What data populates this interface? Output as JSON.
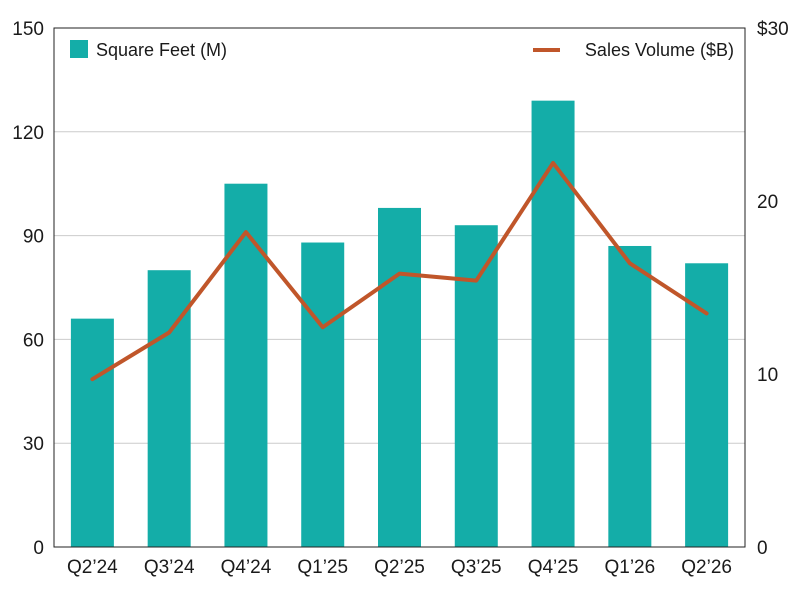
{
  "chart_data": {
    "type": "bar",
    "categories": [
      "Q2’24",
      "Q3’24",
      "Q4’24",
      "Q1’25",
      "Q2’25",
      "Q3’25",
      "Q4’25",
      "Q1’26",
      "Q2’26"
    ],
    "series": [
      {
        "name": "Square Feet (M)",
        "type": "bar",
        "axis": "left",
        "color": "#14ADA8",
        "values": [
          66,
          80,
          105,
          88,
          98,
          93,
          129,
          87,
          82
        ]
      },
      {
        "name": "Sales Volume ($B)",
        "type": "line",
        "axis": "right",
        "color": "#C0562A",
        "values": [
          9.7,
          12.4,
          18.2,
          12.7,
          15.8,
          15.4,
          22.2,
          16.4,
          13.5
        ]
      }
    ],
    "left_axis": {
      "ylim": [
        0,
        150
      ],
      "ticks": [
        0,
        30,
        60,
        90,
        120,
        150
      ],
      "tick_labels": [
        "0",
        "30",
        "60",
        "90",
        "120",
        "150"
      ]
    },
    "right_axis": {
      "ylim": [
        0,
        30
      ],
      "ticks": [
        0,
        10,
        20,
        30
      ],
      "tick_labels": [
        "0",
        "10",
        "20",
        "$30"
      ]
    },
    "legend": {
      "bar_label": "Square Feet (M)",
      "line_label": "Sales Volume ($B)",
      "placement": "top"
    },
    "grid": true,
    "title": "",
    "xlabel": "",
    "ylabel": ""
  }
}
